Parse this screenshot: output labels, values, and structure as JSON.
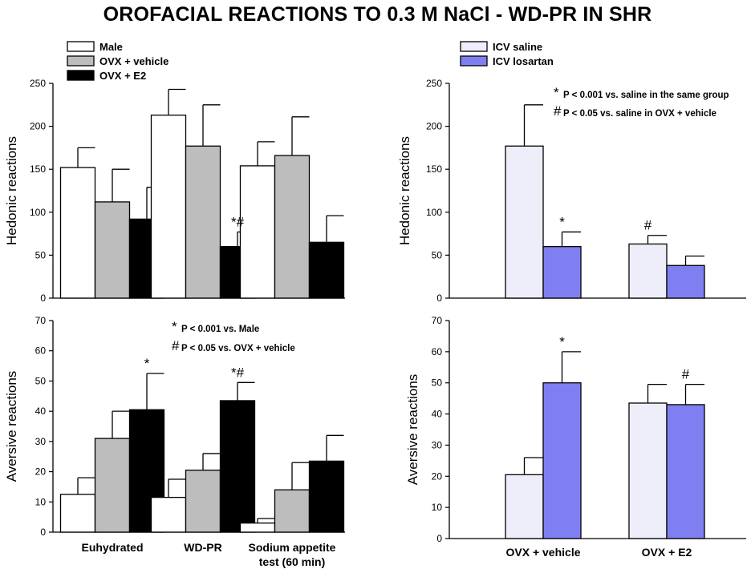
{
  "title": "OROFACIAL REACTIONS TO 0.3 M NaCl - WD-PR IN SHR",
  "colors": {
    "male": "#ffffff",
    "ovx_vehicle": "#bdbdbd",
    "ovx_e2": "#000000",
    "icv_saline": "#eeeefa",
    "icv_losartan": "#7f7ff2"
  },
  "chart_data": [
    {
      "id": "top-left",
      "type": "bar",
      "ylabel": "Hedonic reactions",
      "ylim": [
        0,
        250
      ],
      "yticks": [
        0,
        50,
        100,
        150,
        200,
        250
      ],
      "categories": [
        "Euhydrated",
        "WD-PR",
        "Sodium appetite test (60 min)"
      ],
      "show_categories": false,
      "series": [
        {
          "name": "Male",
          "color": "#ffffff",
          "values": [
            152,
            213,
            154
          ],
          "errors": [
            23,
            30,
            28
          ]
        },
        {
          "name": "OVX + vehicle",
          "color": "#bdbdbd",
          "values": [
            112,
            177,
            166
          ],
          "errors": [
            38,
            48,
            45
          ]
        },
        {
          "name": "OVX + E2",
          "color": "#000000",
          "values": [
            92,
            60,
            65
          ],
          "errors": [
            37,
            17,
            31
          ]
        }
      ],
      "annotations": [
        {
          "series": 2,
          "category": 1,
          "text": "*#"
        }
      ],
      "legend": {
        "position": "top-left",
        "entries": [
          "Male",
          "OVX + vehicle",
          "OVX + E2"
        ]
      },
      "notes": []
    },
    {
      "id": "bottom-left",
      "type": "bar",
      "ylabel": "Aversive reactions",
      "ylim": [
        0,
        70
      ],
      "yticks": [
        0,
        10,
        20,
        30,
        40,
        50,
        60,
        70
      ],
      "categories": [
        "Euhydrated",
        "WD-PR",
        "Sodium appetite test (60 min)"
      ],
      "category_lines": [
        [
          "Euhydrated"
        ],
        [
          "WD-PR"
        ],
        [
          "Sodium appetite",
          "test (60 min)"
        ]
      ],
      "show_categories": true,
      "series": [
        {
          "name": "Male",
          "color": "#ffffff",
          "values": [
            12.5,
            11.5,
            3
          ],
          "errors": [
            5.5,
            6,
            1.5
          ]
        },
        {
          "name": "OVX + vehicle",
          "color": "#bdbdbd",
          "values": [
            31,
            20.5,
            14
          ],
          "errors": [
            9,
            5.5,
            9
          ]
        },
        {
          "name": "OVX + E2",
          "color": "#000000",
          "values": [
            40.5,
            43.5,
            23.5
          ],
          "errors": [
            12,
            6,
            8.5
          ]
        }
      ],
      "annotations": [
        {
          "series": 2,
          "category": 0,
          "text": "*"
        },
        {
          "series": 2,
          "category": 1,
          "text": "*#"
        }
      ],
      "notes": [
        {
          "symbol": "*",
          "text": "P < 0.001 vs. Male"
        },
        {
          "symbol": "#",
          "text": "P < 0.05 vs. OVX + vehicle"
        }
      ]
    },
    {
      "id": "top-right",
      "type": "bar",
      "ylabel": "Hedonic reactions",
      "ylim": [
        0,
        250
      ],
      "yticks": [
        0,
        50,
        100,
        150,
        200,
        250
      ],
      "categories": [
        "OVX + vehicle",
        "OVX + E2"
      ],
      "show_categories": false,
      "series": [
        {
          "name": "ICV saline",
          "color": "#eeeefa",
          "values": [
            177,
            63
          ],
          "errors": [
            48,
            10
          ]
        },
        {
          "name": "ICV losartan",
          "color": "#7f7ff2",
          "values": [
            60,
            38
          ],
          "errors": [
            17,
            11
          ]
        }
      ],
      "annotations": [
        {
          "series": 1,
          "category": 0,
          "text": "*"
        },
        {
          "series": 0,
          "category": 1,
          "text": "#"
        }
      ],
      "legend": {
        "position": "top-left",
        "entries": [
          "ICV saline",
          "ICV losartan"
        ]
      },
      "notes": [
        {
          "symbol": "*",
          "text": "P < 0.001 vs. saline in the same group"
        },
        {
          "symbol": "#",
          "text": "P < 0.05 vs. saline in OVX + vehicle"
        }
      ]
    },
    {
      "id": "bottom-right",
      "type": "bar",
      "ylabel": "Aversive reactions",
      "ylim": [
        0,
        70
      ],
      "yticks": [
        0,
        10,
        20,
        30,
        40,
        50,
        60,
        70
      ],
      "categories": [
        "OVX + vehicle",
        "OVX + E2"
      ],
      "category_lines": [
        [
          "OVX + vehicle"
        ],
        [
          "OVX + E2"
        ]
      ],
      "show_categories": true,
      "series": [
        {
          "name": "ICV saline",
          "color": "#eeeefa",
          "values": [
            20.5,
            43.5
          ],
          "errors": [
            5.5,
            6
          ]
        },
        {
          "name": "ICV losartan",
          "color": "#7f7ff2",
          "values": [
            50,
            43
          ],
          "errors": [
            10,
            6.5
          ]
        }
      ],
      "annotations": [
        {
          "series": 1,
          "category": 0,
          "text": "*"
        },
        {
          "series": 1,
          "category": 1,
          "text": "#"
        }
      ],
      "notes": []
    }
  ]
}
